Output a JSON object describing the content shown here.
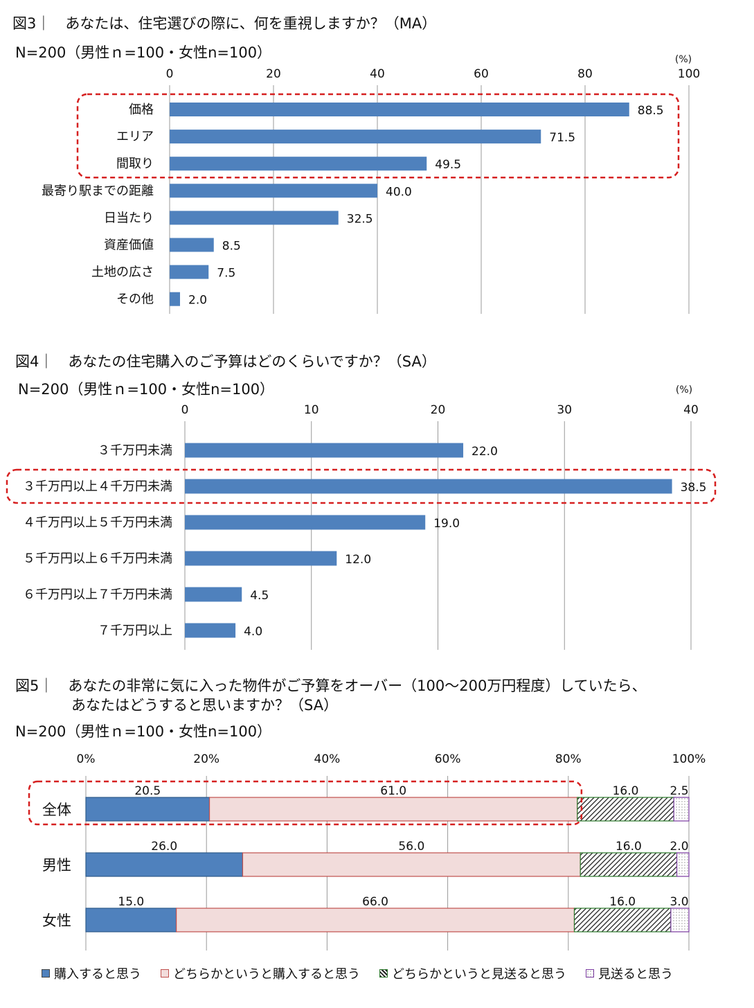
{
  "figure3": {
    "title": "図3｜　あなたは、住宅選びの際に、何を重視しますか？（MA）",
    "sample": "N=200（男性ｎ=100・女性n=100）",
    "unit": "(%)"
  },
  "figure4": {
    "title": "図4｜　あなたの住宅購入のご予算はどのくらいですか？（SA）",
    "sample": "N=200（男性ｎ=100・女性n=100）",
    "unit": "(%)"
  },
  "figure5": {
    "title_line1": "図5｜　あなたの非常に気に入った物件がご予算をオーバー（100～200万円程度）していたら、",
    "title_line2": "あなたはどうすると思いますか？（SA）",
    "sample": "N=200（男性ｎ=100・女性n=100）"
  },
  "colors": {
    "bar_blue": "#4f81bd",
    "pink": "#f2dcdb",
    "pink_border": "#c0504d",
    "highlight": "#d62020",
    "grid": "#999999"
  },
  "chart_data": [
    {
      "type": "bar",
      "orientation": "horizontal",
      "categories": [
        "価格",
        "エリア",
        "間取り",
        "最寄り駅までの距離",
        "日当たり",
        "資産価値",
        "土地の広さ",
        "その他"
      ],
      "values": [
        88.5,
        71.5,
        49.5,
        40.0,
        32.5,
        8.5,
        7.5,
        2.0
      ],
      "value_labels": [
        "88.5",
        "71.5",
        "49.5",
        "40.0",
        "32.5",
        "8.5",
        "7.5",
        "2.0"
      ],
      "xlim": [
        0,
        100
      ],
      "xticks": [
        "0",
        "20",
        "40",
        "60",
        "80",
        "100"
      ],
      "grid": true,
      "highlighted_categories": [
        "価格",
        "エリア",
        "間取り"
      ]
    },
    {
      "type": "bar",
      "orientation": "horizontal",
      "categories": [
        "３千万円未満",
        "３千万円以上４千万円未満",
        "４千万円以上５千万円未満",
        "５千万円以上６千万円未満",
        "６千万円以上７千万円未満",
        "７千万円以上"
      ],
      "values": [
        22.0,
        38.5,
        19.0,
        12.0,
        4.5,
        4.0
      ],
      "value_labels": [
        "22.0",
        "38.5",
        "19.0",
        "12.0",
        "4.5",
        "4.0"
      ],
      "xlim": [
        0,
        40
      ],
      "xticks": [
        "0",
        "10",
        "20",
        "30",
        "40"
      ],
      "grid": true,
      "highlighted_categories": [
        "３千万円以上４千万円未満"
      ]
    },
    {
      "type": "bar",
      "orientation": "horizontal",
      "stacked": "percent",
      "categories": [
        "全体",
        "男性",
        "女性"
      ],
      "series": [
        {
          "name": "購入すると思う",
          "values": [
            20.5,
            26.0,
            15.0
          ],
          "labels": [
            "20.5",
            "26.0",
            "15.0"
          ]
        },
        {
          "name": "どちらかというと購入すると思う",
          "values": [
            61.0,
            56.0,
            66.0
          ],
          "labels": [
            "61.0",
            "56.0",
            "66.0"
          ]
        },
        {
          "name": "どちらかというと見送ると思う",
          "values": [
            16.0,
            16.0,
            16.0
          ],
          "labels": [
            "16.0",
            "16.0",
            "16.0"
          ]
        },
        {
          "name": "見送ると思う",
          "values": [
            2.5,
            2.0,
            3.0
          ],
          "labels": [
            "2.5",
            "2.0",
            "3.0"
          ]
        }
      ],
      "xlim": [
        0,
        100
      ],
      "xticks": [
        "0%",
        "20%",
        "40%",
        "60%",
        "80%",
        "100%"
      ],
      "grid": true,
      "legend": "bottom"
    }
  ]
}
